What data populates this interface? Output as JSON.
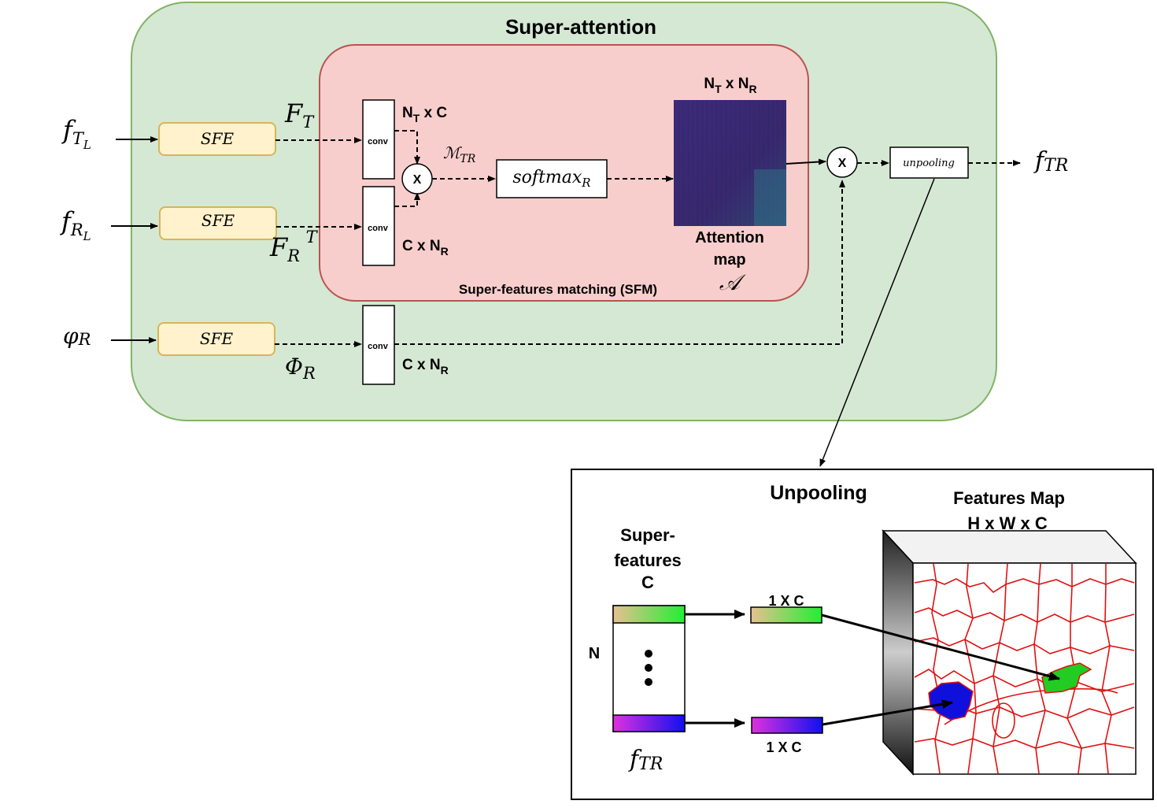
{
  "super_attention": {
    "title": "Super-attention",
    "inputs": [
      {
        "symbol": "f",
        "sub": "T",
        "subsub": "L"
      },
      {
        "symbol": "f",
        "sub": "R",
        "subsub": "L"
      },
      {
        "symbol": "φ",
        "sub": "R"
      }
    ],
    "sfe_label": "SFE",
    "features": [
      {
        "symbol": "F",
        "sub": "T",
        "sup": ""
      },
      {
        "symbol": "F",
        "sub": "R",
        "sup": "T"
      },
      {
        "symbol": "Φ",
        "sub": "R",
        "sup": ""
      }
    ],
    "conv_label": "conv",
    "conv_dims": [
      {
        "main": "N",
        "sub": "T",
        "rest": " x C"
      },
      {
        "main": "C x N",
        "sub": "R",
        "rest": ""
      },
      {
        "main": "C x N",
        "sub": "R",
        "rest": ""
      }
    ],
    "multiply_symbol": "X",
    "match_symbol": "ℳ",
    "match_sub": "TR",
    "softmax": "softmax",
    "softmax_sub": "R",
    "attention_dims": {
      "a": "N",
      "a_sub": "T",
      "mid": " x N",
      "b_sub": "R"
    },
    "attention_label_1": "Attention",
    "attention_label_2": "map",
    "attention_symbol": "𝒜",
    "sfm_label": "Super-features matching (SFM)",
    "unpooling_small": "unpooling",
    "output": {
      "symbol": "f",
      "sub": "TR"
    },
    "colors": {
      "outer": "#d5e8d4",
      "outer_border": "#82b366",
      "sfm": "#f8cecc",
      "sfm_border": "#b85450",
      "sfe": "#fff2cc",
      "sfe_border": "#d6b656",
      "attention": "#3b1f6e"
    }
  },
  "unpooling": {
    "title": "Unpooling",
    "feature_map_title": "Features Map",
    "feature_map_dims": "H x W x C",
    "superfeatures_line1": "Super-",
    "superfeatures_line2": "features",
    "superfeatures_line3": "C",
    "n_label": "N",
    "vector_top": "1 X C",
    "vector_bottom": "1 X C",
    "output": {
      "symbol": "f",
      "sub": "TR"
    }
  }
}
